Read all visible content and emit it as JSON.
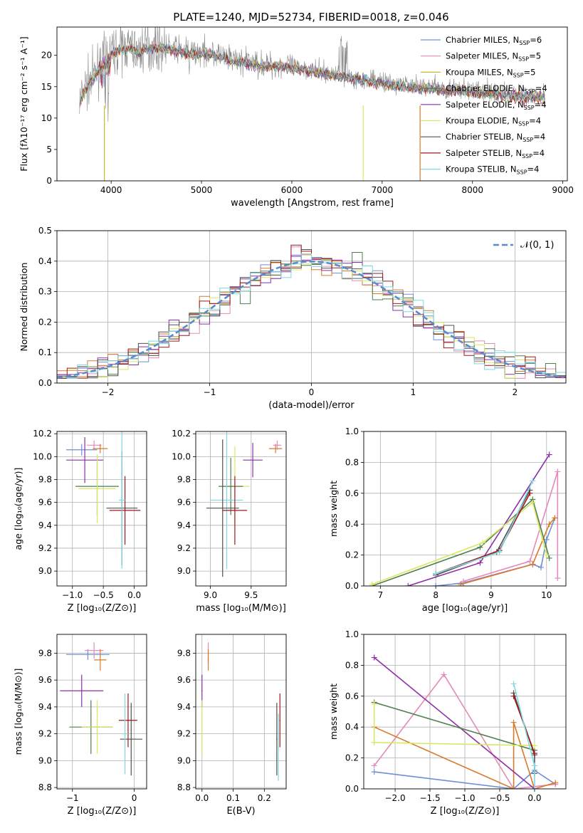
{
  "title": "PLATE=1240, MJD=52734, FIBERID=0018, z=0.046",
  "colors": {
    "chabrier_miles": "#6e8fd8",
    "salpeter_miles": "#e58ab8",
    "kroupa_miles": "#c9b830",
    "chabrier_elodie": "#4f7f4f",
    "salpeter_elodie": "#8c2fa8",
    "kroupa_elodie": "#d8e860",
    "chabrier_stelib": "#505050",
    "salpeter_stelib": "#a01818",
    "kroupa_stelib": "#80d8e0",
    "data": "#8a8a8a",
    "normal": "#5a8ad0"
  },
  "panels": {
    "spectrum": {
      "xlabel": "wavelength [Angstrom, rest frame]",
      "ylabel": "Flux [fλ10⁻¹⁷ erg cm⁻² s⁻¹ A⁻¹]",
      "legend": [
        {
          "label": "Chabrier MILES, N",
          "sub": "SSP",
          "tail": "=6",
          "color": "#6e8fd8"
        },
        {
          "label": "Salpeter MILES, N",
          "sub": "SSP",
          "tail": "=5",
          "color": "#e58ab8"
        },
        {
          "label": "Kroupa MILES, N",
          "sub": "SSP",
          "tail": "=5",
          "color": "#c9b830"
        },
        {
          "label": "Chabrier ELODIE, N",
          "sub": "SSP",
          "tail": "=4",
          "color": "#4f7f4f"
        },
        {
          "label": "Salpeter ELODIE, N",
          "sub": "SSP",
          "tail": "=4",
          "color": "#8c2fa8"
        },
        {
          "label": "Kroupa ELODIE, N",
          "sub": "SSP",
          "tail": "=4",
          "color": "#d8e860"
        },
        {
          "label": "Chabrier STELIB, N",
          "sub": "SSP",
          "tail": "=4",
          "color": "#505050"
        },
        {
          "label": "Salpeter STELIB, N",
          "sub": "SSP",
          "tail": "=4",
          "color": "#a01818"
        },
        {
          "label": "Kroupa STELIB, N",
          "sub": "SSP",
          "tail": "=4",
          "color": "#80d8e0"
        }
      ]
    },
    "histogram": {
      "xlabel": "(data-model)/error",
      "ylabel": "Normed distribution",
      "legend_label": "𝒩(0, 1)"
    },
    "age_z": {
      "xlabel": "Z [log₁₀(Z/Z⊙)]",
      "ylabel": "age  [log₁₀(age/yr)]"
    },
    "age_mass": {
      "xlabel": "mass [log₁₀(M/M⊙)]"
    },
    "mw_age": {
      "xlabel": "age  [log₁₀(age/yr)]",
      "ylabel": "mass weight"
    },
    "mass_z": {
      "xlabel": "Z [log₁₀(Z/Z⊙)]",
      "ylabel": "mass [log₁₀(M/M⊙)]"
    },
    "mass_ebv": {
      "xlabel": "E(B-V)"
    },
    "mw_z": {
      "xlabel": "Z [log₁₀(Z/Z⊙)]",
      "ylabel": "mass weight"
    }
  },
  "chart_data": [
    {
      "type": "line",
      "panel": "spectrum",
      "xlim": [
        3400,
        9050
      ],
      "ylim": [
        0,
        24.5
      ],
      "xticks": [
        4000,
        5000,
        6000,
        7000,
        8000,
        9000
      ],
      "yticks": [
        0,
        5,
        10,
        15,
        20
      ],
      "grid": false,
      "legend_position": "top-right",
      "continuum": [
        [
          3650,
          12.5
        ],
        [
          3700,
          14.5
        ],
        [
          3800,
          16.5
        ],
        [
          3900,
          19
        ],
        [
          4000,
          20.5
        ],
        [
          4100,
          21
        ],
        [
          4200,
          21.5
        ],
        [
          4300,
          20.5
        ],
        [
          4400,
          21.5
        ],
        [
          4500,
          21.5
        ],
        [
          4700,
          21
        ],
        [
          4900,
          20.5
        ],
        [
          5100,
          20.5
        ],
        [
          5300,
          19.5
        ],
        [
          5500,
          19
        ],
        [
          5700,
          18.5
        ],
        [
          5900,
          18.5
        ],
        [
          6100,
          18
        ],
        [
          6300,
          17.5
        ],
        [
          6500,
          17
        ],
        [
          6700,
          16.5
        ],
        [
          6900,
          16
        ],
        [
          7100,
          15.5
        ],
        [
          7300,
          15.2
        ],
        [
          7500,
          15
        ],
        [
          7700,
          14.7
        ],
        [
          7900,
          14.5
        ],
        [
          8100,
          14.2
        ],
        [
          8300,
          14
        ],
        [
          8500,
          13.8
        ],
        [
          8700,
          13.6
        ],
        [
          8800,
          13.5
        ]
      ]
    },
    {
      "type": "bar",
      "panel": "histogram",
      "xlim": [
        -2.5,
        2.5
      ],
      "ylim": [
        0,
        0.5
      ],
      "xticks": [
        -2,
        -1,
        0,
        1,
        2
      ],
      "yticks": [
        0.0,
        0.1,
        0.2,
        0.3,
        0.4,
        0.5
      ],
      "grid": true,
      "legend_position": "top-right",
      "normal_curve": {
        "mean": 0,
        "sigma": 1
      }
    },
    {
      "type": "scatter",
      "panel": "age_z",
      "xlim": [
        -1.25,
        0.2
      ],
      "ylim": [
        8.87,
        10.22
      ],
      "xticks": [
        -1,
        -0.5,
        0
      ],
      "yticks": [
        9.0,
        9.2,
        9.4,
        9.6,
        9.8,
        10.0,
        10.2
      ],
      "grid": true,
      "points": [
        {
          "x": -0.85,
          "y": 10.06,
          "xerr": 0.25,
          "yerr": 0.05,
          "color": "#6e8fd8"
        },
        {
          "x": -0.65,
          "y": 10.1,
          "xerr": 0.12,
          "yerr": 0.04,
          "color": "#e58ab8"
        },
        {
          "x": -0.55,
          "y": 10.07,
          "xerr": 0.12,
          "yerr": 0.04,
          "color": "#d97a2a"
        },
        {
          "x": -0.8,
          "y": 9.97,
          "xerr": 0.3,
          "yerr": 0.2,
          "color": "#8c2fa8"
        },
        {
          "x": -0.6,
          "y": 9.74,
          "xerr": 0.35,
          "yerr": 0.25,
          "color": "#4f7f4f"
        },
        {
          "x": -0.6,
          "y": 9.72,
          "xerr": 0.3,
          "yerr": 0.3,
          "color": "#d8e860"
        },
        {
          "x": -0.2,
          "y": 9.55,
          "xerr": 0.25,
          "yerr": 0.5,
          "color": "#505050"
        },
        {
          "x": -0.15,
          "y": 9.53,
          "xerr": 0.25,
          "yerr": 0.3,
          "color": "#a01818"
        },
        {
          "x": -0.2,
          "y": 9.62,
          "xerr": 0.05,
          "yerr": 0.6,
          "color": "#80d8e0"
        }
      ]
    },
    {
      "type": "scatter",
      "panel": "age_mass",
      "xlim": [
        8.82,
        9.93
      ],
      "ylim": [
        8.87,
        10.22
      ],
      "xticks": [
        9.0,
        9.5
      ],
      "yticks": [
        9.0,
        9.2,
        9.4,
        9.6,
        9.8,
        10.0,
        10.2
      ],
      "grid": true,
      "points": [
        {
          "x": 9.8,
          "y": 10.07,
          "xerr": 0.08,
          "yerr": 0.04,
          "color": "#d97a2a"
        },
        {
          "x": 9.82,
          "y": 10.1,
          "xerr": 0.05,
          "yerr": 0.04,
          "color": "#e58ab8"
        },
        {
          "x": 9.52,
          "y": 9.97,
          "xerr": 0.12,
          "yerr": 0.15,
          "color": "#8c2fa8"
        },
        {
          "x": 9.3,
          "y": 9.74,
          "xerr": 0.18,
          "yerr": 0.35,
          "color": "#d8e860"
        },
        {
          "x": 9.25,
          "y": 9.74,
          "xerr": 0.15,
          "yerr": 0.25,
          "color": "#4f7f4f"
        },
        {
          "x": 9.2,
          "y": 9.62,
          "xerr": 0.2,
          "yerr": 0.6,
          "color": "#80d8e0"
        },
        {
          "x": 9.15,
          "y": 9.55,
          "xerr": 0.2,
          "yerr": 0.6,
          "color": "#505050"
        },
        {
          "x": 9.3,
          "y": 9.53,
          "xerr": 0.15,
          "yerr": 0.3,
          "color": "#a01818"
        }
      ]
    },
    {
      "type": "line",
      "panel": "mw_age",
      "xlim": [
        6.7,
        10.35
      ],
      "ylim": [
        0,
        1.0
      ],
      "xticks": [
        7,
        8,
        9,
        10
      ],
      "yticks": [
        0.0,
        0.2,
        0.4,
        0.6,
        0.8,
        1.0
      ],
      "grid": true,
      "series": [
        {
          "color": "#6e8fd8",
          "points": [
            [
              8.0,
              0.0
            ],
            [
              8.5,
              0.02
            ],
            [
              9.75,
              0.14
            ],
            [
              9.9,
              0.12
            ],
            [
              10.0,
              0.3
            ],
            [
              10.15,
              0.44
            ]
          ]
        },
        {
          "color": "#e58ab8",
          "points": [
            [
              8.5,
              0.03
            ],
            [
              9.7,
              0.16
            ],
            [
              10.2,
              0.74
            ],
            [
              10.2,
              0.05
            ]
          ]
        },
        {
          "color": "#d97a2a",
          "points": [
            [
              8.45,
              0.01
            ],
            [
              9.75,
              0.14
            ],
            [
              10.05,
              0.4
            ],
            [
              10.15,
              0.44
            ]
          ]
        },
        {
          "color": "#8c2fa8",
          "points": [
            [
              7.5,
              0.0
            ],
            [
              8.8,
              0.15
            ],
            [
              10.05,
              0.85
            ]
          ]
        },
        {
          "color": "#4f7f4f",
          "points": [
            [
              6.85,
              0.0
            ],
            [
              8.8,
              0.25
            ],
            [
              9.75,
              0.56
            ],
            [
              10.05,
              0.18
            ]
          ]
        },
        {
          "color": "#d8e860",
          "points": [
            [
              6.85,
              0.01
            ],
            [
              8.85,
              0.28
            ],
            [
              9.75,
              0.54
            ],
            [
              10.0,
              0.2
            ]
          ]
        },
        {
          "color": "#505050",
          "points": [
            [
              8.0,
              0.07
            ],
            [
              9.1,
              0.22
            ],
            [
              9.7,
              0.62
            ]
          ]
        },
        {
          "color": "#a01818",
          "points": [
            [
              8.0,
              0.08
            ],
            [
              9.15,
              0.23
            ],
            [
              9.7,
              0.6
            ]
          ]
        },
        {
          "color": "#80d8e0",
          "points": [
            [
              8.0,
              0.08
            ],
            [
              9.15,
              0.22
            ],
            [
              9.75,
              0.68
            ]
          ]
        }
      ]
    },
    {
      "type": "scatter",
      "panel": "mass_z",
      "xlim": [
        -1.25,
        0.2
      ],
      "ylim": [
        8.79,
        9.94
      ],
      "xticks": [
        -1,
        0
      ],
      "yticks": [
        8.8,
        9.0,
        9.2,
        9.4,
        9.6,
        9.8
      ],
      "grid": true,
      "points": [
        {
          "x": -0.75,
          "y": 9.79,
          "xerr": 0.35,
          "yerr": 0.04,
          "color": "#6e8fd8"
        },
        {
          "x": -0.65,
          "y": 9.82,
          "xerr": 0.15,
          "yerr": 0.06,
          "color": "#e58ab8"
        },
        {
          "x": -0.55,
          "y": 9.75,
          "xerr": 0.1,
          "yerr": 0.08,
          "color": "#d97a2a"
        },
        {
          "x": -0.85,
          "y": 9.52,
          "xerr": 0.35,
          "yerr": 0.12,
          "color": "#8c2fa8"
        },
        {
          "x": -0.7,
          "y": 9.25,
          "xerr": 0.35,
          "yerr": 0.2,
          "color": "#4f7f4f"
        },
        {
          "x": -0.6,
          "y": 9.25,
          "xerr": 0.25,
          "yerr": 0.2,
          "color": "#d8e860"
        },
        {
          "x": -0.05,
          "y": 9.16,
          "xerr": 0.18,
          "yerr": 0.27,
          "color": "#505050"
        },
        {
          "x": -0.1,
          "y": 9.3,
          "xerr": 0.15,
          "yerr": 0.2,
          "color": "#a01818"
        },
        {
          "x": -0.15,
          "y": 9.2,
          "xerr": 0.05,
          "yerr": 0.3,
          "color": "#80d8e0"
        }
      ]
    },
    {
      "type": "scatter",
      "panel": "mass_ebv",
      "xlim": [
        -0.02,
        0.27
      ],
      "ylim": [
        8.79,
        9.94
      ],
      "xticks": [
        0.0,
        0.1,
        0.2
      ],
      "yticks": [
        8.8,
        9.0,
        9.2,
        9.4,
        9.6,
        9.8
      ],
      "grid": true,
      "points": [
        {
          "x": 0.02,
          "y": 9.8,
          "yerr": 0.08,
          "color": "#e58ab8"
        },
        {
          "x": 0.02,
          "y": 9.75,
          "yerr": 0.08,
          "color": "#d97a2a"
        },
        {
          "x": 0.0,
          "y": 9.52,
          "yerr": 0.12,
          "color": "#8c2fa8"
        },
        {
          "x": 0.0,
          "y": 9.25,
          "yerr": 0.2,
          "color": "#d8e860"
        },
        {
          "x": 0.24,
          "y": 9.16,
          "yerr": 0.27,
          "color": "#505050"
        },
        {
          "x": 0.25,
          "y": 9.3,
          "yerr": 0.2,
          "color": "#a01818"
        },
        {
          "x": 0.245,
          "y": 9.1,
          "yerr": 0.25,
          "color": "#80d8e0"
        }
      ]
    },
    {
      "type": "line",
      "panel": "mw_z",
      "xlim": [
        -2.45,
        0.45
      ],
      "ylim": [
        0,
        1.0
      ],
      "xticks": [
        -2.0,
        -1.5,
        -1.0,
        -0.5,
        0.0
      ],
      "yticks": [
        0.0,
        0.2,
        0.4,
        0.6,
        0.8,
        1.0
      ],
      "grid": true,
      "series": [
        {
          "color": "#6e8fd8",
          "points": [
            [
              -2.3,
              0.11
            ],
            [
              -0.3,
              0.0
            ],
            [
              0.0,
              0.12
            ],
            [
              0.3,
              0.03
            ]
          ]
        },
        {
          "color": "#e58ab8",
          "points": [
            [
              -2.3,
              0.15
            ],
            [
              -1.3,
              0.74
            ],
            [
              -0.3,
              0.0
            ],
            [
              0.3,
              0.03
            ]
          ]
        },
        {
          "color": "#d97a2a",
          "points": [
            [
              -2.3,
              0.4
            ],
            [
              -0.3,
              0.0
            ],
            [
              -0.3,
              0.43
            ],
            [
              0.0,
              0.0
            ],
            [
              0.3,
              0.04
            ]
          ]
        },
        {
          "color": "#8c2fa8",
          "points": [
            [
              -2.3,
              0.85
            ],
            [
              0.0,
              0.0
            ]
          ]
        },
        {
          "color": "#4f7f4f",
          "points": [
            [
              -2.3,
              0.56
            ],
            [
              0.0,
              0.25
            ]
          ]
        },
        {
          "color": "#d8e860",
          "points": [
            [
              -2.3,
              0.55
            ],
            [
              -2.3,
              0.3
            ],
            [
              0.0,
              0.28
            ]
          ]
        },
        {
          "color": "#505050",
          "points": [
            [
              -0.3,
              0.62
            ],
            [
              0.0,
              0.22
            ],
            [
              0.0,
              0.1
            ]
          ]
        },
        {
          "color": "#a01818",
          "points": [
            [
              -0.3,
              0.6
            ],
            [
              0.0,
              0.23
            ]
          ]
        },
        {
          "color": "#80d8e0",
          "points": [
            [
              -0.3,
              0.68
            ],
            [
              0.0,
              0.15
            ],
            [
              0.0,
              0.0
            ]
          ]
        }
      ]
    }
  ]
}
